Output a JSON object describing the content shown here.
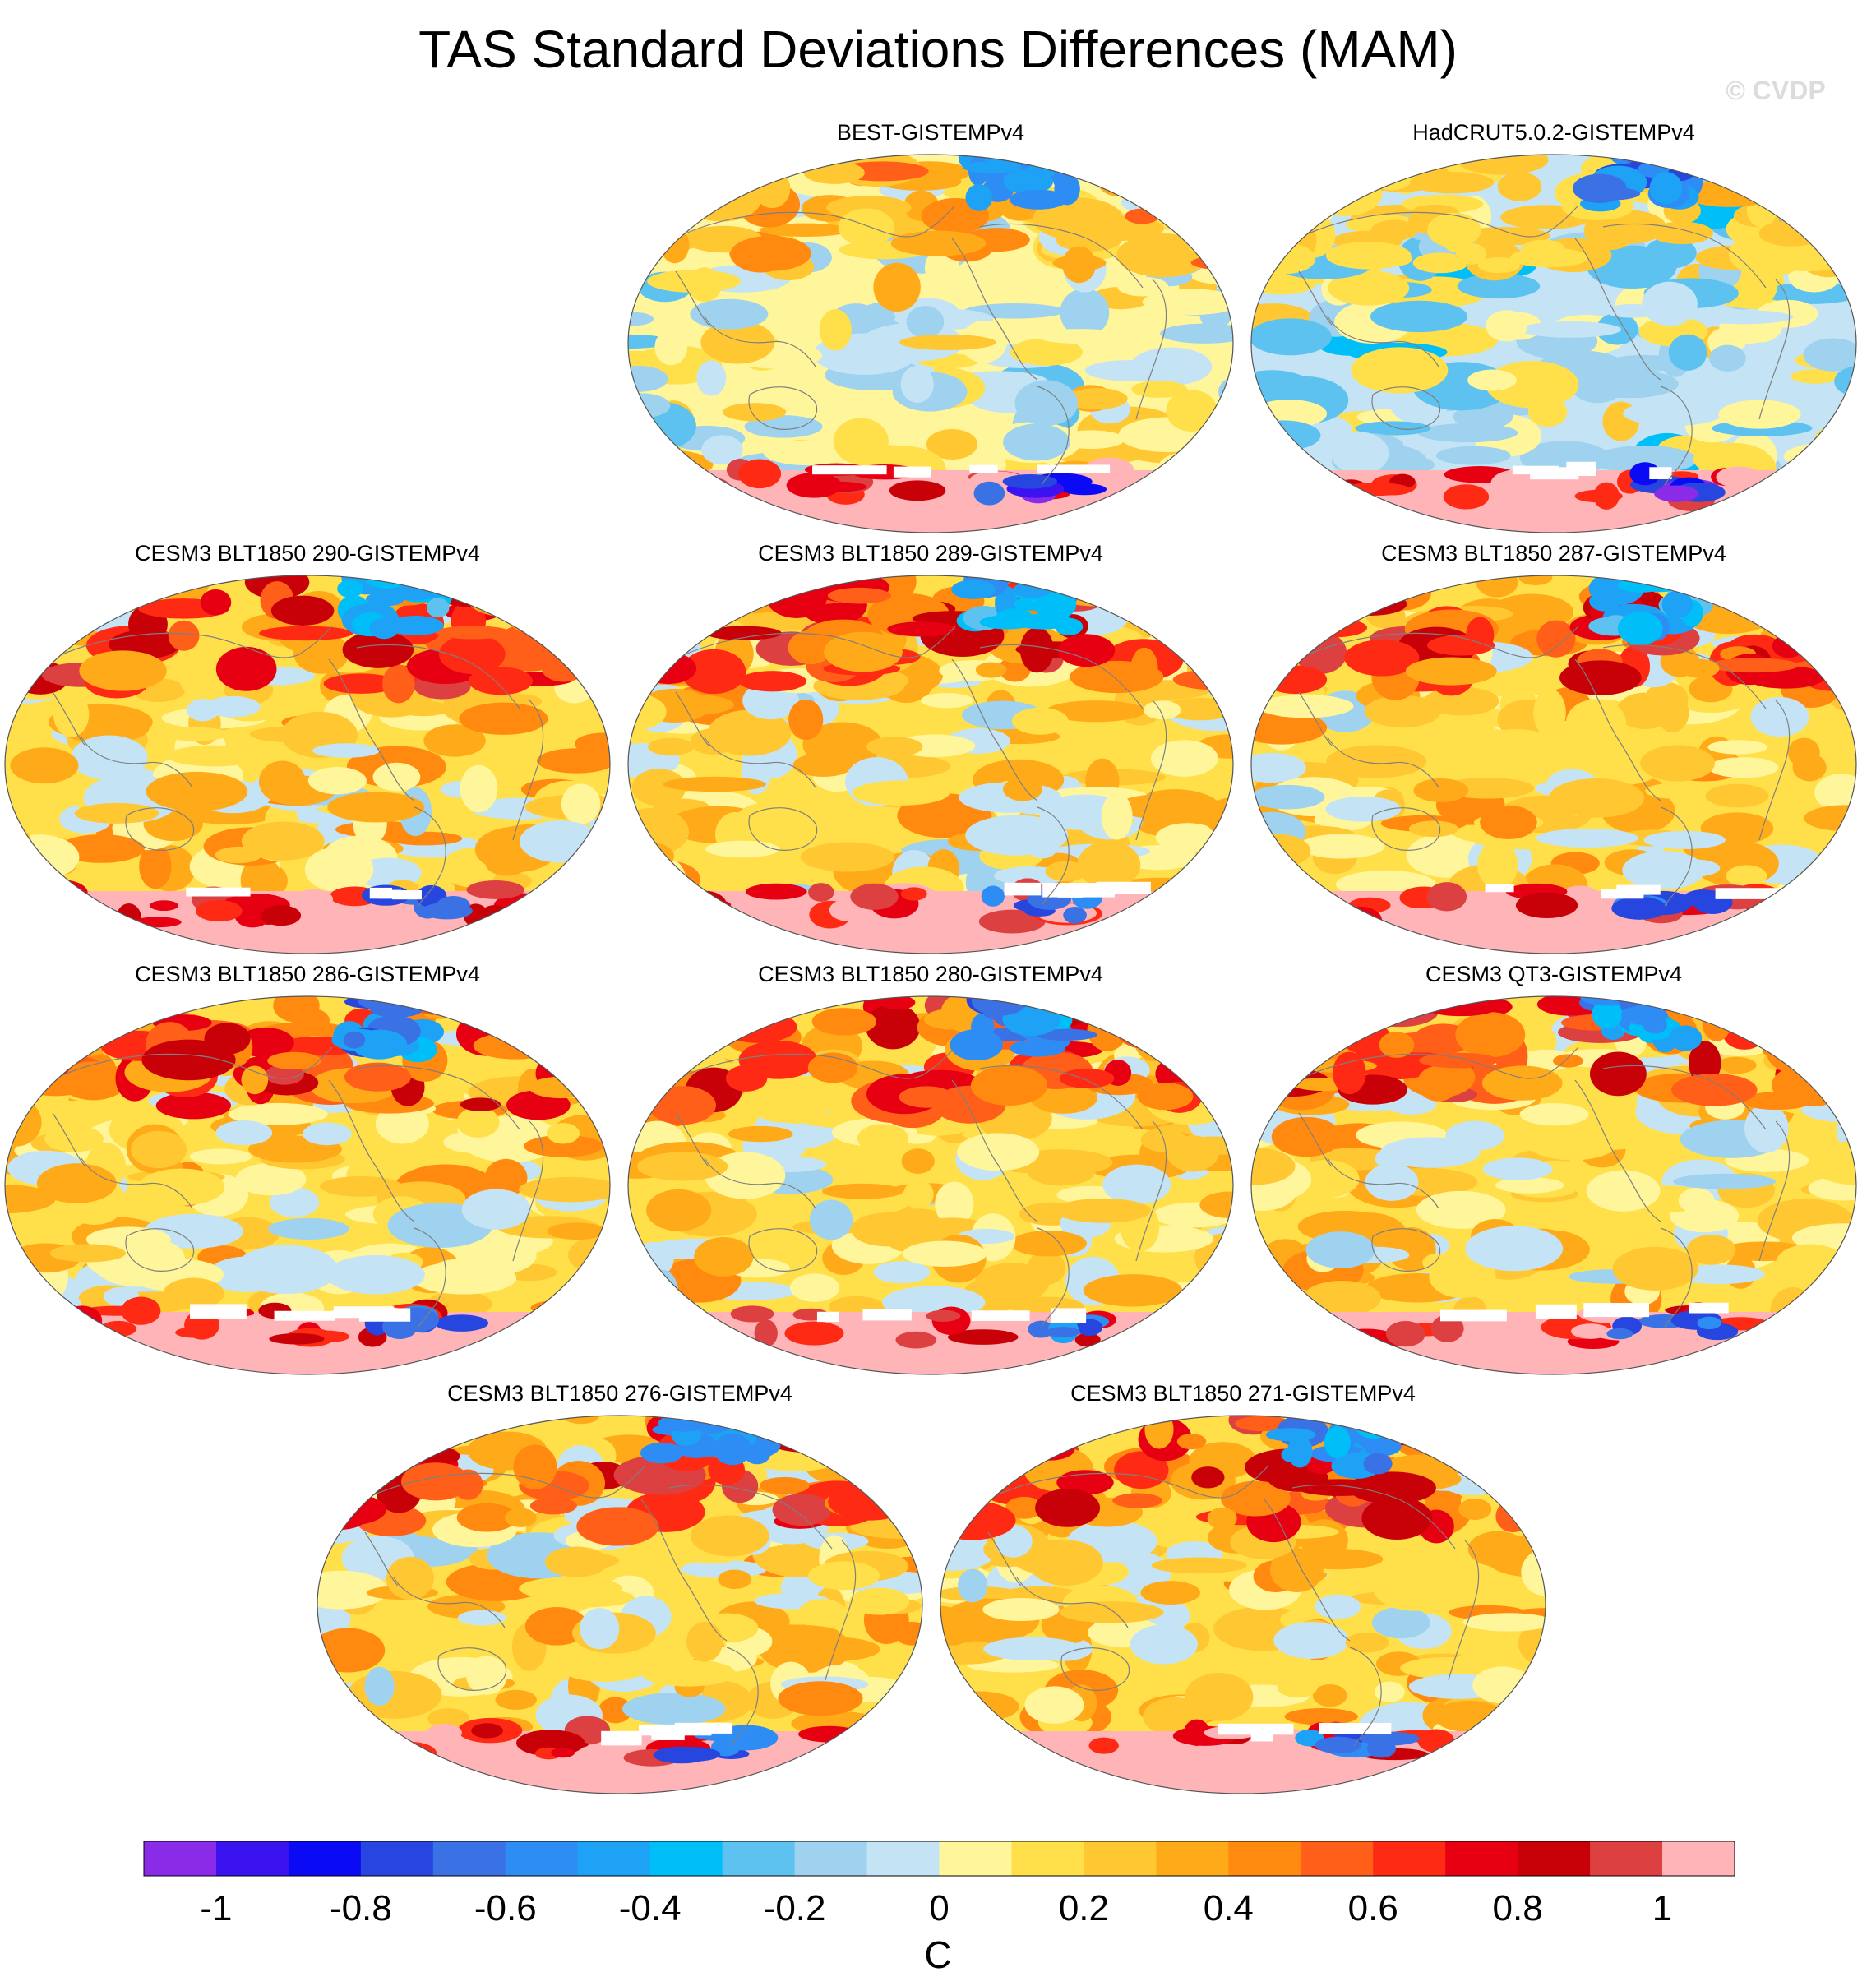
{
  "chart_data": {
    "type": "heatmap",
    "title": "TAS Standard Deviations Differences (MAM)",
    "watermark": "© CVDP",
    "projection": "global map",
    "panels": [
      {
        "title": "BEST-GISTEMPv4",
        "dominant": "mixed",
        "north_pacific_max": 0.5,
        "arctic_min": -0.7,
        "antarctic_range": [
          -1.1,
          1.1
        ]
      },
      {
        "title": "HadCRUT5.0.2-GISTEMPv4",
        "dominant": "negative",
        "north_pacific_max": 0.3,
        "arctic_min": -0.8,
        "antarctic_range": [
          -1.1,
          1.1
        ]
      },
      {
        "title": "CESM3 BLT1850 290-GISTEMPv4",
        "dominant": "positive",
        "north_pacific_max": 0.9,
        "arctic_min": -0.5,
        "antarctic_range": [
          -0.8,
          1.1
        ]
      },
      {
        "title": "CESM3 BLT1850 289-GISTEMPv4",
        "dominant": "positive",
        "north_pacific_max": 0.9,
        "arctic_min": -0.5,
        "antarctic_range": [
          -0.8,
          1.1
        ]
      },
      {
        "title": "CESM3 BLT1850 287-GISTEMPv4",
        "dominant": "positive",
        "north_pacific_max": 0.9,
        "arctic_min": -0.5,
        "antarctic_range": [
          -0.8,
          1.1
        ]
      },
      {
        "title": "CESM3 BLT1850 286-GISTEMPv4",
        "dominant": "positive",
        "north_pacific_max": 0.9,
        "arctic_min": -0.7,
        "antarctic_range": [
          -0.8,
          1.1
        ]
      },
      {
        "title": "CESM3 BLT1850 280-GISTEMPv4",
        "dominant": "positive",
        "north_pacific_max": 0.9,
        "arctic_min": -0.7,
        "antarctic_range": [
          -0.8,
          1.1
        ]
      },
      {
        "title": "CESM3 QT3-GISTEMPv4",
        "dominant": "positive",
        "north_pacific_max": 0.9,
        "arctic_min": -0.6,
        "antarctic_range": [
          -0.8,
          1.1
        ]
      },
      {
        "title": "CESM3 BLT1850 276-GISTEMPv4",
        "dominant": "positive",
        "north_pacific_max": 0.9,
        "arctic_min": -0.6,
        "antarctic_range": [
          -0.8,
          1.1
        ]
      },
      {
        "title": "CESM3 BLT1850 271-GISTEMPv4",
        "dominant": "positive",
        "north_pacific_max": 0.9,
        "arctic_min": -0.6,
        "antarctic_range": [
          -0.8,
          1.1
        ]
      }
    ],
    "colorbar": {
      "label": "C",
      "levels": [
        -1.1,
        -1.0,
        -0.9,
        -0.8,
        -0.7,
        -0.6,
        -0.5,
        -0.4,
        -0.3,
        -0.2,
        -0.1,
        0,
        0.1,
        0.2,
        0.3,
        0.4,
        0.5,
        0.6,
        0.7,
        0.8,
        0.9,
        1.0,
        1.1
      ],
      "colors": [
        "#8a2be8",
        "#3a13f0",
        "#0a0af5",
        "#2746e0",
        "#3a72e6",
        "#2e8cf5",
        "#1ea2f5",
        "#00bff8",
        "#5ec2f0",
        "#9ed2ef",
        "#c4e4f6",
        "#fff59a",
        "#ffe04a",
        "#ffc832",
        "#ffaa19",
        "#ff8a0f",
        "#ff5f19",
        "#ff2a14",
        "#e60012",
        "#c80008",
        "#dd4040",
        "#ffb5b8"
      ],
      "tick_labels": [
        "-1",
        "-0.8",
        "-0.6",
        "-0.4",
        "-0.2",
        "0",
        "0.2",
        "0.4",
        "0.6",
        "0.8",
        "1"
      ],
      "tick_values": [
        -1,
        -0.8,
        -0.6,
        -0.4,
        -0.2,
        0,
        0.2,
        0.4,
        0.6,
        0.8,
        1
      ]
    }
  }
}
